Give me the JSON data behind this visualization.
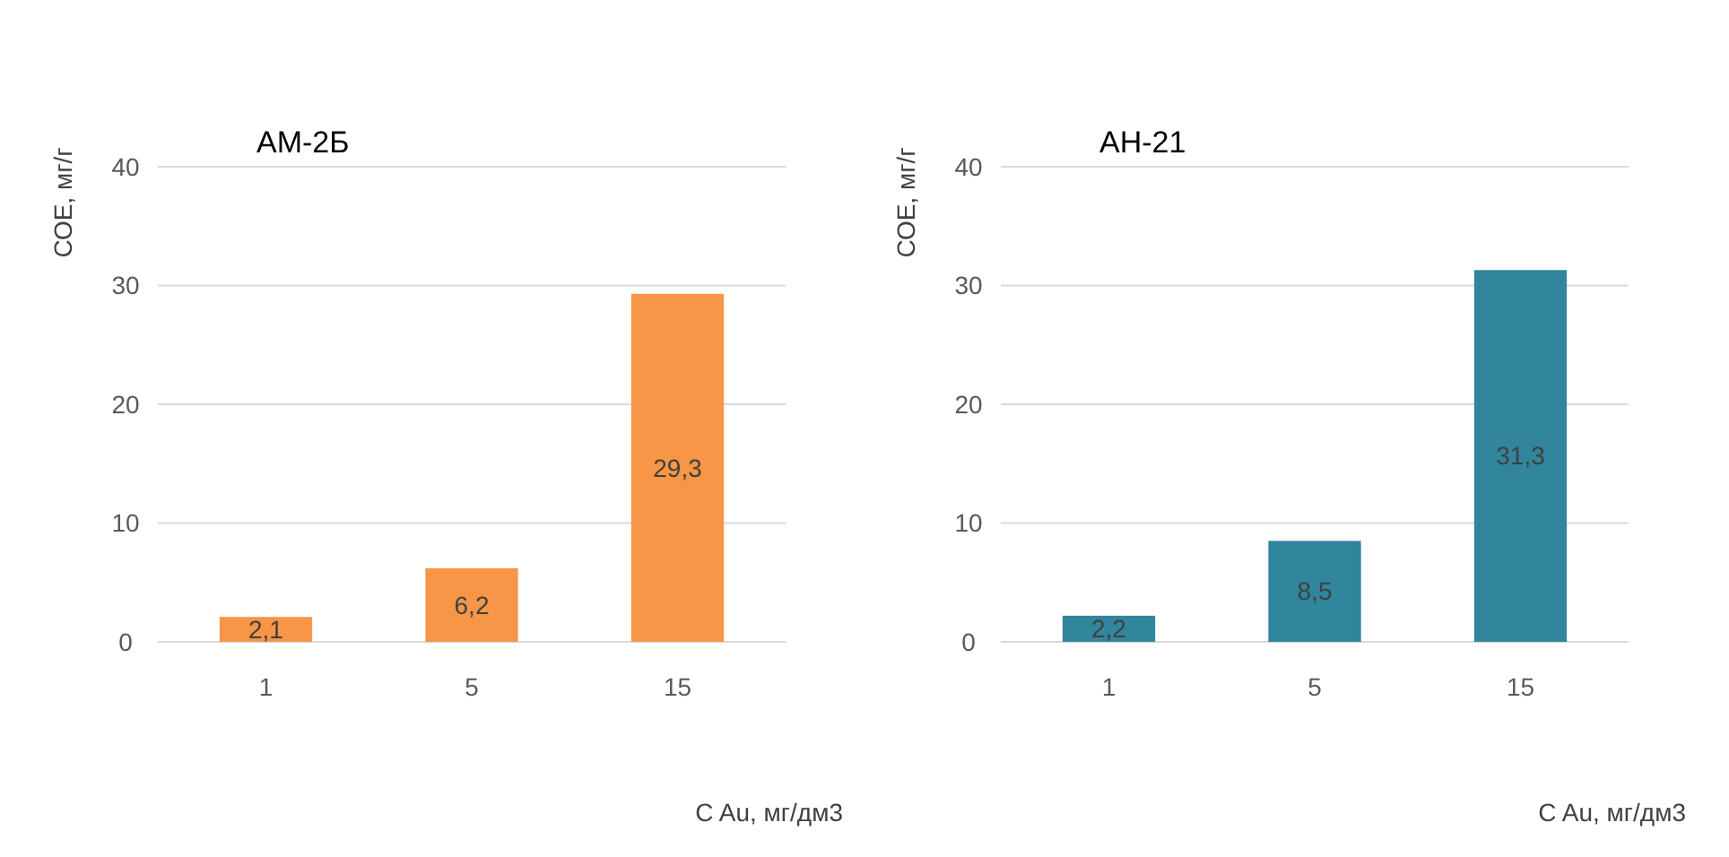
{
  "chart_data": [
    {
      "type": "bar",
      "title": "АМ-2Б",
      "ylabel": "СОЕ, мг/г",
      "xlabel": "C Au,  мг/дм3",
      "categories": [
        "1",
        "5",
        "15"
      ],
      "values": [
        2.1,
        6.2,
        29.3
      ],
      "value_labels": [
        "2,1",
        "6,2",
        "29,3"
      ],
      "color": "#f79646",
      "ylim": [
        0,
        40
      ],
      "yticks": [
        0,
        10,
        20,
        30,
        40
      ],
      "grid": "y"
    },
    {
      "type": "bar",
      "title": "АН-21",
      "ylabel": "СОЕ, мг/г",
      "xlabel": "C Au,  мг/дм3",
      "categories": [
        "1",
        "5",
        "15"
      ],
      "values": [
        2.2,
        8.5,
        31.3
      ],
      "value_labels": [
        "2,2",
        "8,5",
        "31,3"
      ],
      "color": "#31859c",
      "ylim": [
        0,
        40
      ],
      "yticks": [
        0,
        10,
        20,
        30,
        40
      ],
      "grid": "y"
    }
  ]
}
